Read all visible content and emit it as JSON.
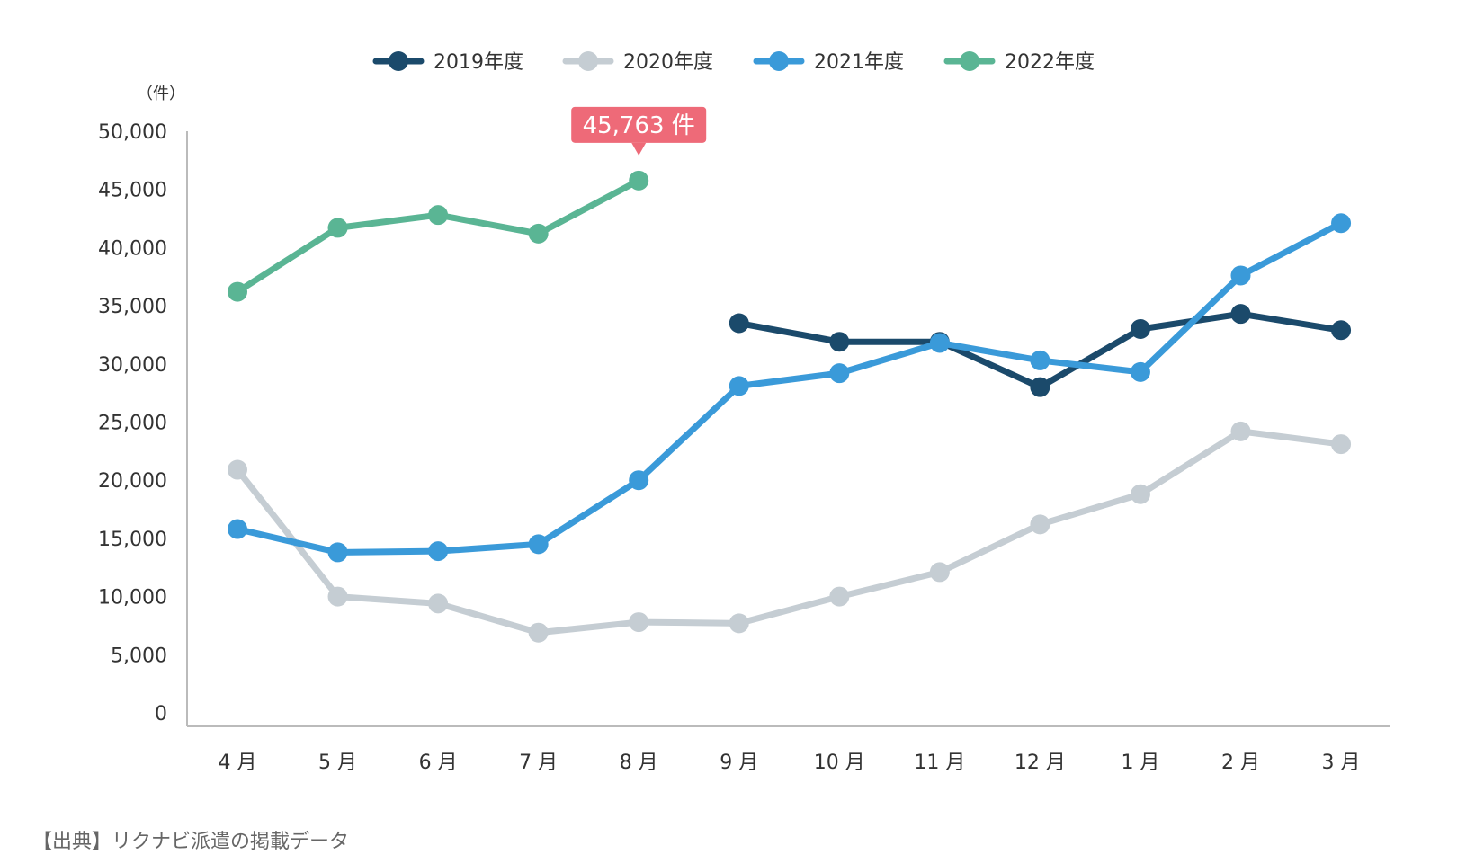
{
  "chart_data": {
    "type": "line",
    "title": "",
    "xlabel": "",
    "ylabel": "",
    "unit_label": "（件）",
    "categories": [
      "4 月",
      "5 月",
      "6 月",
      "7 月",
      "8 月",
      "9 月",
      "10 月",
      "11 月",
      "12 月",
      "1 月",
      "2 月",
      "3 月"
    ],
    "ylim": [
      0,
      50000
    ],
    "yticks": [
      0,
      5000,
      10000,
      15000,
      20000,
      25000,
      30000,
      35000,
      40000,
      45000,
      50000
    ],
    "ytick_labels": [
      "0",
      "5,000",
      "10,000",
      "15,000",
      "20,000",
      "25,000",
      "30,000",
      "35,000",
      "40,000",
      "45,000",
      "50,000"
    ],
    "grid": false,
    "legend_position": "top-center",
    "series": [
      {
        "name": "2019年度",
        "color": "#1b4a6b",
        "values": [
          null,
          null,
          null,
          null,
          null,
          33500,
          31900,
          31900,
          28000,
          33000,
          34300,
          32900
        ]
      },
      {
        "name": "2020年度",
        "color": "#c5cdd3",
        "values": [
          20900,
          10000,
          9400,
          6900,
          7800,
          7700,
          10000,
          12100,
          16200,
          18800,
          24200,
          23100
        ]
      },
      {
        "name": "2021年度",
        "color": "#3a9ad9",
        "values": [
          15800,
          13800,
          13900,
          14500,
          20000,
          28100,
          29200,
          31800,
          30300,
          29300,
          37600,
          42100
        ]
      },
      {
        "name": "2022年度",
        "color": "#5ab594",
        "values": [
          36200,
          41700,
          42800,
          41200,
          45763,
          null,
          null,
          null,
          null,
          null,
          null,
          null
        ]
      }
    ],
    "annotation": {
      "text": "45,763 件",
      "series_index": 3,
      "point_index": 4,
      "color": "#ee6a78"
    }
  },
  "footer": {
    "source": "【出典】リクナビ派遣の掲載データ"
  }
}
